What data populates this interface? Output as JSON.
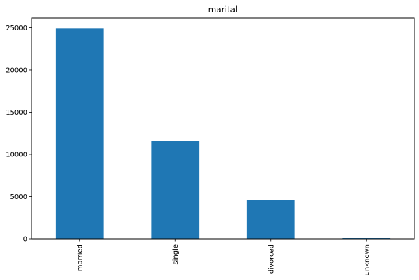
{
  "chart_data": {
    "type": "bar",
    "title": "marital",
    "xlabel": "",
    "ylabel": "",
    "categories": [
      "married",
      "single",
      "divorced",
      "unknown"
    ],
    "values": [
      24928,
      11568,
      4612,
      80
    ],
    "ylim": [
      0,
      26175
    ],
    "yticks": [
      0,
      5000,
      10000,
      15000,
      20000,
      25000
    ],
    "ytick_labels": [
      "0",
      "5000",
      "10000",
      "15000",
      "20000",
      "25000"
    ],
    "bar_color": "#1f77b4",
    "grid": false,
    "legend": "none"
  }
}
